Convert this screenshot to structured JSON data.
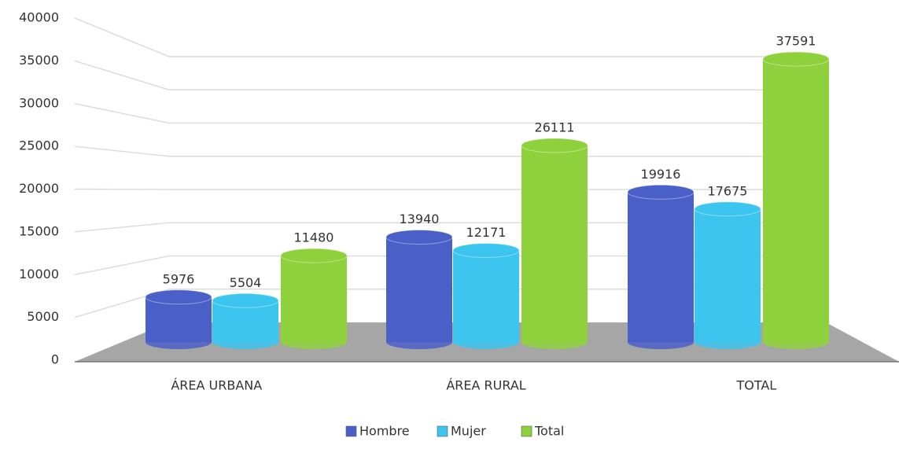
{
  "chart_data": {
    "type": "bar",
    "categories": [
      "ÁREA URBANA",
      "ÁREA RURAL",
      "TOTAL"
    ],
    "series": [
      {
        "name": "Hombre",
        "color": "#4a5fc8",
        "values": [
          5976,
          13940,
          19916
        ]
      },
      {
        "name": "Mujer",
        "color": "#3cc6ef",
        "values": [
          5504,
          12171,
          17675
        ]
      },
      {
        "name": "Total",
        "color": "#8fd13c",
        "values": [
          11480,
          26111,
          37591
        ]
      }
    ],
    "ylim": [
      0,
      40000
    ],
    "yticks": [
      0,
      5000,
      10000,
      15000,
      20000,
      25000,
      30000,
      35000,
      40000
    ],
    "grid": true,
    "legend": "bottom"
  }
}
